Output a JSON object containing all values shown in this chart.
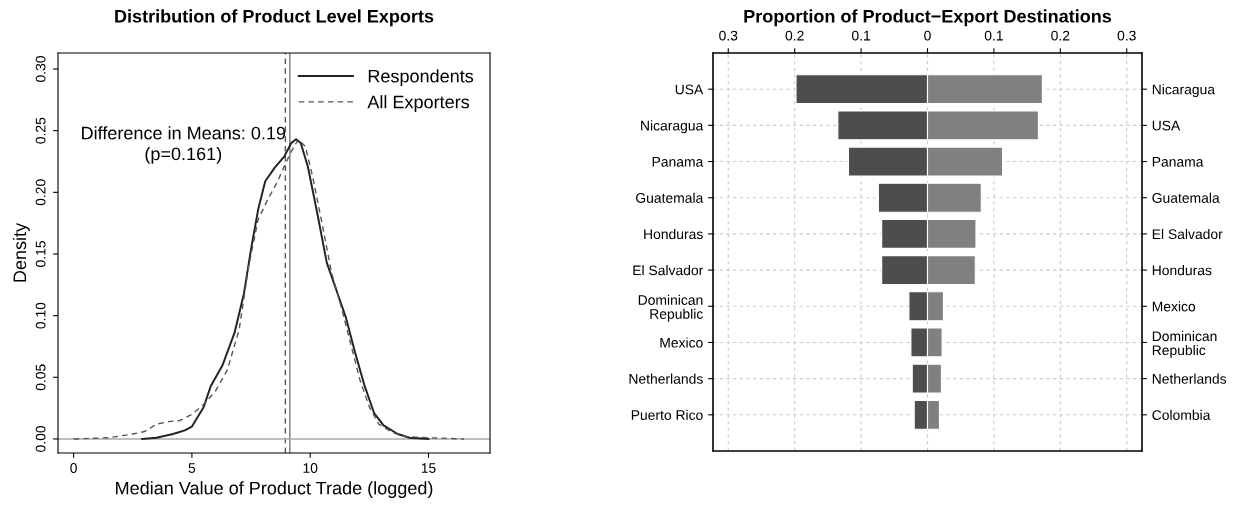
{
  "chart_data": [
    {
      "type": "line",
      "title": "Distribution of Product Level Exports",
      "xlabel": "Median Value of Product Trade (logged)",
      "ylabel": "Density",
      "xlim": [
        -0.66,
        17.6
      ],
      "ylim": [
        -0.0114,
        0.313
      ],
      "xticks": [
        0,
        5,
        10,
        15
      ],
      "yticks": [
        {
          "value": 0,
          "label": "0.00"
        },
        {
          "value": 0.05,
          "label": "0.05"
        },
        {
          "value": 0.1,
          "label": "0.10"
        },
        {
          "value": 0.15,
          "label": "0.15"
        },
        {
          "value": 0.2,
          "label": "0.20"
        },
        {
          "value": 0.25,
          "label": "0.25"
        },
        {
          "value": 0.3,
          "label": "0.30"
        }
      ],
      "legend": "top right",
      "grid": false,
      "annotations": [
        "Difference in Means: 0.19\n(p=0.161)"
      ],
      "ref_lines": [
        {
          "axis": "x",
          "value": 8.95,
          "color": "#555555",
          "line_style": "dashed"
        },
        {
          "axis": "x",
          "value": 9.14,
          "color": "#777777",
          "line_style": "solid"
        },
        {
          "axis": "y",
          "value": 0,
          "color": "#aaaaaa",
          "line_style": "solid"
        }
      ],
      "series": [
        {
          "name": "Respondents",
          "color": "#222222",
          "line_style": "solid",
          "x": [
            2.9,
            3.5,
            4.2,
            4.7,
            5.0,
            5.5,
            5.8,
            6.3,
            6.8,
            7.2,
            7.5,
            7.8,
            8.1,
            8.5,
            8.9,
            9.2,
            9.4,
            9.6,
            9.9,
            10.3,
            10.7,
            11.1,
            11.5,
            11.9,
            12.3,
            12.7,
            13.1,
            13.7,
            14.2,
            15.0
          ],
          "values": [
            0,
            0.001,
            0.004,
            0.007,
            0.01,
            0.026,
            0.043,
            0.06,
            0.086,
            0.118,
            0.154,
            0.186,
            0.209,
            0.22,
            0.229,
            0.24,
            0.243,
            0.24,
            0.221,
            0.183,
            0.143,
            0.121,
            0.099,
            0.07,
            0.043,
            0.021,
            0.011,
            0.004,
            0.001,
            0
          ]
        },
        {
          "name": "All Exporters",
          "color": "#555555",
          "line_style": "dashed",
          "x": [
            0,
            1.5,
            2.5,
            3.0,
            3.5,
            4.0,
            4.5,
            5.0,
            5.5,
            6.0,
            6.5,
            7.0,
            7.4,
            7.8,
            8.2,
            8.6,
            8.9,
            9.2,
            9.5,
            9.8,
            10.1,
            10.5,
            10.9,
            11.3,
            11.7,
            12.1,
            12.5,
            12.9,
            13.5,
            14.0,
            15.0,
            16.5
          ],
          "values": [
            0,
            0.001,
            0.004,
            0.006,
            0.012,
            0.014,
            0.015,
            0.02,
            0.028,
            0.039,
            0.056,
            0.089,
            0.14,
            0.178,
            0.194,
            0.208,
            0.221,
            0.233,
            0.243,
            0.237,
            0.213,
            0.175,
            0.135,
            0.108,
            0.078,
            0.048,
            0.026,
            0.012,
            0.005,
            0.002,
            0.001,
            0
          ]
        }
      ]
    },
    {
      "type": "bar",
      "orientation": "horizontal",
      "title": "Proportion of Product−Export Destinations",
      "grid": true,
      "categories": [
        "USA",
        "Nicaragua",
        "Panama",
        "Guatemala",
        "Honduras",
        "El Salvador",
        "Dominican\nRepublic",
        "Mexico",
        "Netherlands",
        "Puerto Rico"
      ],
      "xlim": [
        -0.323,
        0.323
      ],
      "xticks": [
        {
          "value": -0.3,
          "label": "0.3"
        },
        {
          "value": -0.2,
          "label": "0.2"
        },
        {
          "value": -0.1,
          "label": "0.1"
        },
        0,
        0.1,
        0.2,
        0.3
      ],
      "series": [
        {
          "color": "#4d4d4d",
          "values": [
            -0.198,
            -0.135,
            -0.119,
            -0.074,
            -0.069,
            -0.069,
            -0.028,
            -0.025,
            -0.023,
            -0.02
          ]
        }
      ]
    },
    {
      "type": "bar",
      "orientation": "horizontal",
      "grid": true,
      "tick_labels": "y",
      "categories": [
        "Nicaragua",
        "USA",
        "Panama",
        "Guatemala",
        "El Salvador",
        "Honduras",
        "Mexico",
        "Dominican\nRepublic",
        "Netherlands",
        "Colombia"
      ],
      "xlim": [
        -0.323,
        0.323
      ],
      "series": [
        {
          "color": "#808080",
          "values": [
            0.173,
            0.167,
            0.113,
            0.081,
            0.073,
            0.072,
            0.024,
            0.022,
            0.021,
            0.018
          ]
        }
      ]
    }
  ]
}
